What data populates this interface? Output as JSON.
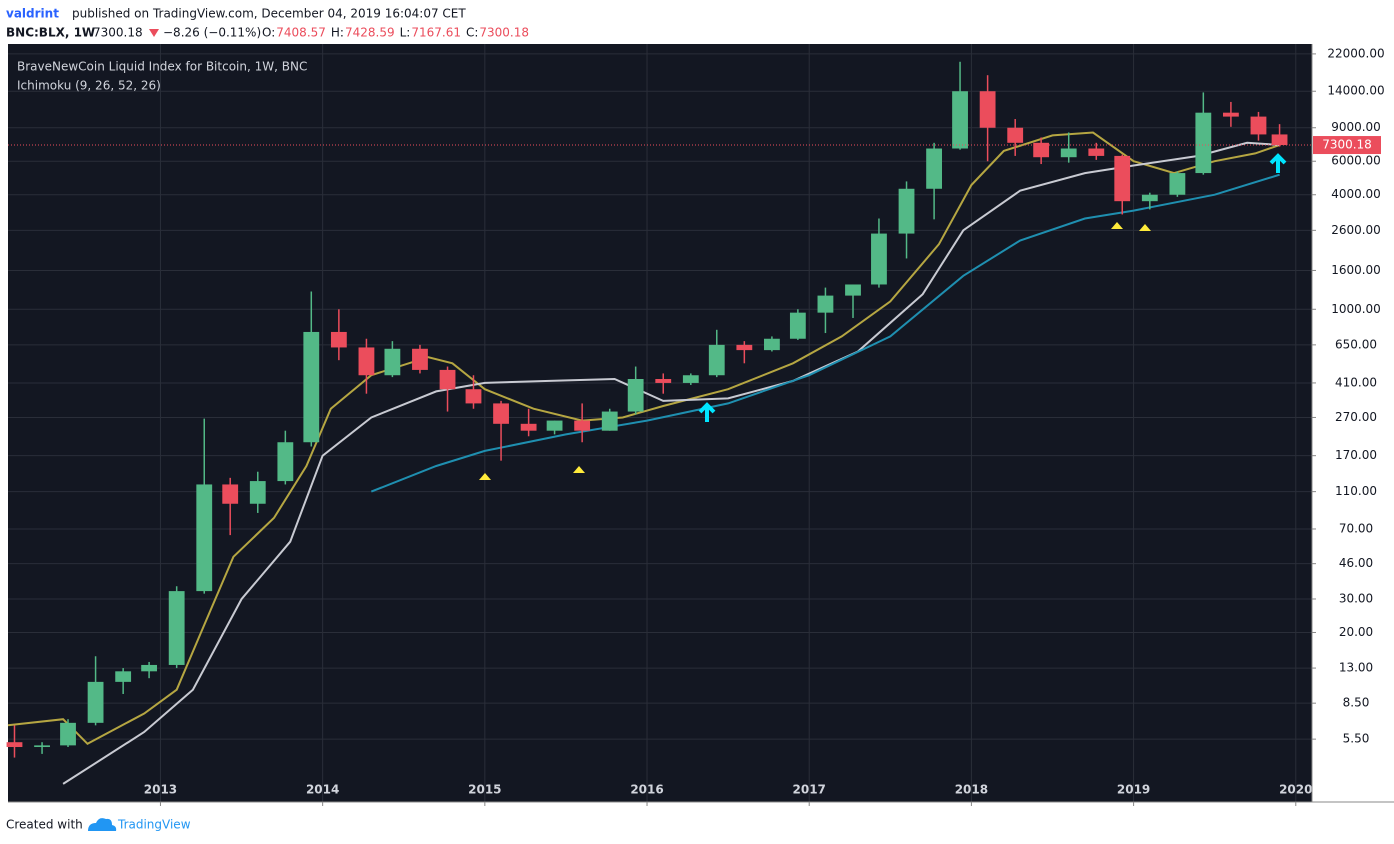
{
  "header": {
    "publisher": "valdrint",
    "published_line": "published on TradingView.com, December 04, 2019 16:04:07 CET",
    "symbol": "BNC:BLX, 1W",
    "price": "7300.18",
    "change": "−8.26 (−0.11%)",
    "ohlc": [
      {
        "label": "O:",
        "value": "7408.57"
      },
      {
        "label": "H:",
        "value": "7428.59"
      },
      {
        "label": "L:",
        "value": "7167.61"
      },
      {
        "label": "C:",
        "value": "7300.18"
      }
    ]
  },
  "footer": {
    "created_with": "Created with",
    "brand": "TradingView"
  },
  "chart_data": {
    "type": "candlestick",
    "title": "BraveNewCoin Liquid Index for Bitcoin, 1W, BNC",
    "subtitle": "Ichimoku (9, 26, 52, 26)",
    "log_scale": true,
    "grid": true,
    "up_color": "#53b987",
    "down_color": "#eb4d5c",
    "last_price": 7300.18,
    "last_price_color": "#eb4d5c",
    "xlim": [
      2012.06,
      2020.1
    ],
    "xticks": [
      2013,
      2014,
      2015,
      2016,
      2017,
      2018,
      2019,
      2020
    ],
    "ylim": [
      2.57,
      24800
    ],
    "yticks": [
      {
        "value": 5.5,
        "label": "5.50"
      },
      {
        "value": 8.5,
        "label": "8.50"
      },
      {
        "value": 13,
        "label": "13.00"
      },
      {
        "value": 20,
        "label": "20.00"
      },
      {
        "value": 30,
        "label": "30.00"
      },
      {
        "value": 46,
        "label": "46.00"
      },
      {
        "value": 70,
        "label": "70.00"
      },
      {
        "value": 110,
        "label": "110.00"
      },
      {
        "value": 170,
        "label": "170.00"
      },
      {
        "value": 270,
        "label": "270.00"
      },
      {
        "value": 410,
        "label": "410.00"
      },
      {
        "value": 650,
        "label": "650.00"
      },
      {
        "value": 1000,
        "label": "1000.00"
      },
      {
        "value": 1600,
        "label": "1600.00"
      },
      {
        "value": 2600,
        "label": "2600.00"
      },
      {
        "value": 4000,
        "label": "4000.00"
      },
      {
        "value": 6000,
        "label": "6000.00"
      },
      {
        "value": 9000,
        "label": "9000.00"
      },
      {
        "value": 14000,
        "label": "14000.00"
      },
      {
        "value": 22000,
        "label": "22000.00"
      }
    ],
    "x": [
      2012.1,
      2012.27,
      2012.43,
      2012.6,
      2012.77,
      2012.93,
      2013.1,
      2013.27,
      2013.43,
      2013.6,
      2013.77,
      2013.93,
      2014.1,
      2014.27,
      2014.43,
      2014.6,
      2014.77,
      2014.93,
      2015.1,
      2015.27,
      2015.43,
      2015.6,
      2015.77,
      2015.93,
      2016.1,
      2016.27,
      2016.43,
      2016.6,
      2016.77,
      2016.93,
      2017.1,
      2017.27,
      2017.43,
      2017.6,
      2017.77,
      2017.93,
      2018.1,
      2018.27,
      2018.43,
      2018.6,
      2018.77,
      2018.93,
      2019.1,
      2019.27,
      2019.43,
      2019.6,
      2019.77,
      2019.9
    ],
    "open": [
      5.3,
      5,
      5.1,
      6.7,
      11,
      12.5,
      13.5,
      33,
      120,
      95,
      125,
      200,
      760,
      630,
      450,
      620,
      480,
      380,
      320,
      250,
      230,
      260,
      230,
      290,
      430,
      410,
      450,
      650,
      610,
      700,
      960,
      1180,
      1350,
      2500,
      4300,
      7000,
      14000,
      9000,
      7500,
      6300,
      7000,
      6400,
      3700,
      4000,
      5200,
      10800,
      10300,
      8300
    ],
    "high": [
      6.5,
      5.3,
      7,
      15,
      13,
      14,
      35,
      266,
      130,
      140,
      230,
      1240,
      1000,
      700,
      680,
      650,
      500,
      450,
      330,
      300,
      260,
      320,
      300,
      500,
      460,
      460,
      780,
      680,
      720,
      1000,
      1300,
      1350,
      3000,
      4700,
      7500,
      20000,
      17000,
      10000,
      8000,
      8500,
      7500,
      6500,
      4100,
      5300,
      13800,
      12300,
      10900,
      9400
    ],
    "low": [
      4.4,
      4.6,
      5,
      6.5,
      9.5,
      11.5,
      13,
      32,
      65,
      85,
      120,
      190,
      540,
      360,
      440,
      460,
      290,
      300,
      160,
      215,
      220,
      200,
      230,
      280,
      360,
      400,
      440,
      520,
      600,
      690,
      750,
      900,
      1300,
      1850,
      2970,
      6900,
      6000,
      6400,
      5800,
      5900,
      6100,
      3150,
      3350,
      3900,
      5100,
      9100,
      7700,
      7167
    ],
    "close": [
      5,
      5.1,
      6.7,
      11,
      12.5,
      13.5,
      33,
      120,
      95,
      125,
      200,
      760,
      630,
      450,
      620,
      480,
      380,
      320,
      250,
      230,
      260,
      230,
      290,
      430,
      410,
      450,
      650,
      610,
      700,
      960,
      1180,
      1350,
      2500,
      4300,
      7000,
      14000,
      9000,
      7500,
      6300,
      7000,
      6400,
      3700,
      4000,
      5200,
      10800,
      10300,
      8300,
      7300
    ],
    "overlays": [
      {
        "color": "#b5a642",
        "x": [
          2012.06,
          2012.4,
          2012.55,
          2012.9,
          2013.1,
          2013.25,
          2013.45,
          2013.7,
          2013.9,
          2014.05,
          2014.3,
          2014.65,
          2014.8,
          2015.0,
          2015.3,
          2015.6,
          2015.85,
          2016.1,
          2016.5,
          2016.9,
          2017.2,
          2017.5,
          2017.8,
          2018.0,
          2018.2,
          2018.5,
          2018.75,
          2019.0,
          2019.25,
          2019.5,
          2019.75,
          2019.9
        ],
        "values": [
          6.5,
          7,
          5.2,
          7.5,
          10,
          20,
          50,
          80,
          150,
          300,
          450,
          560,
          520,
          380,
          300,
          260,
          270,
          310,
          380,
          520,
          720,
          1100,
          2200,
          4500,
          6800,
          8200,
          8500,
          6000,
          5200,
          6000,
          6600,
          7300
        ]
      },
      {
        "color": "#c8cad2",
        "x": [
          2012.4,
          2012.9,
          2013.2,
          2013.5,
          2013.8,
          2014.0,
          2014.3,
          2014.7,
          2015.0,
          2015.4,
          2015.8,
          2016.1,
          2016.5,
          2016.9,
          2017.3,
          2017.7,
          2017.95,
          2018.3,
          2018.7,
          2019.0,
          2019.4,
          2019.7,
          2019.9
        ],
        "values": [
          3.2,
          6,
          10,
          30,
          60,
          170,
          270,
          370,
          410,
          420,
          430,
          330,
          340,
          420,
          600,
          1200,
          2600,
          4200,
          5200,
          5700,
          6400,
          7500,
          7300
        ]
      },
      {
        "color": "#1f8fb0",
        "x": [
          2014.3,
          2014.7,
          2015.0,
          2015.5,
          2016.0,
          2016.5,
          2017.0,
          2017.5,
          2017.95,
          2018.3,
          2018.7,
          2019.0,
          2019.5,
          2019.9
        ],
        "values": [
          110,
          150,
          180,
          220,
          260,
          320,
          450,
          720,
          1500,
          2300,
          3000,
          3300,
          4000,
          5100
        ]
      }
    ]
  }
}
